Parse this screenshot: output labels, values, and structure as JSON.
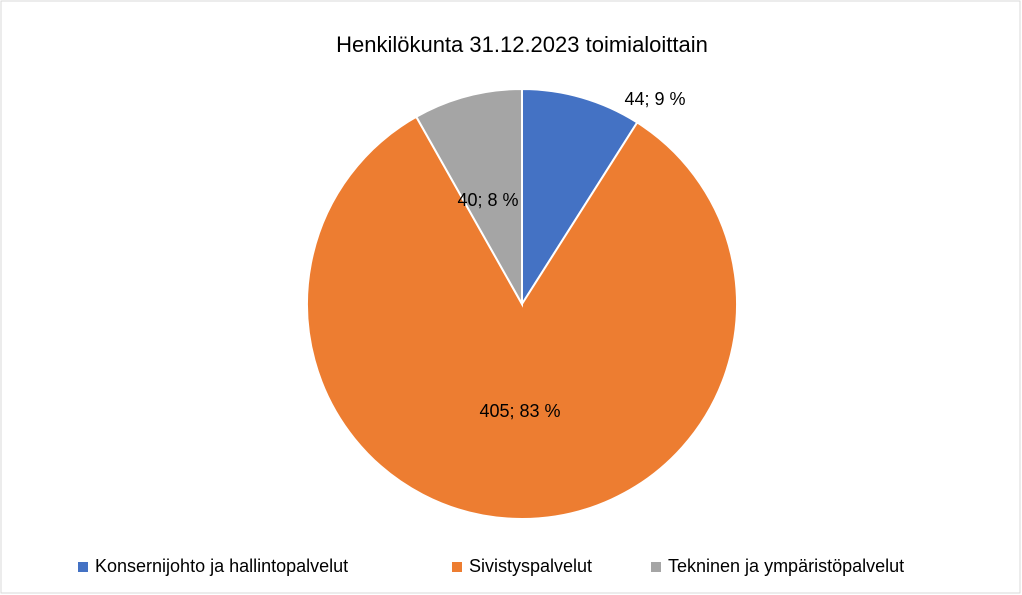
{
  "chart_data": {
    "type": "pie",
    "title": "Henkilökunta 31.12.2023 toimialoittain",
    "categories": [
      "Konsernijohto ja hallintopalvelut",
      "Sivistyspalvelut",
      "Tekninen ja ympäristöpalvelut"
    ],
    "values": [
      44,
      405,
      40
    ],
    "value_labels": [
      "44; 9 %",
      "405; 83 %",
      "40; 8 %"
    ],
    "colors": [
      "#4472c4",
      "#ed7d31",
      "#a5a5a5"
    ],
    "legend": "bottom"
  }
}
